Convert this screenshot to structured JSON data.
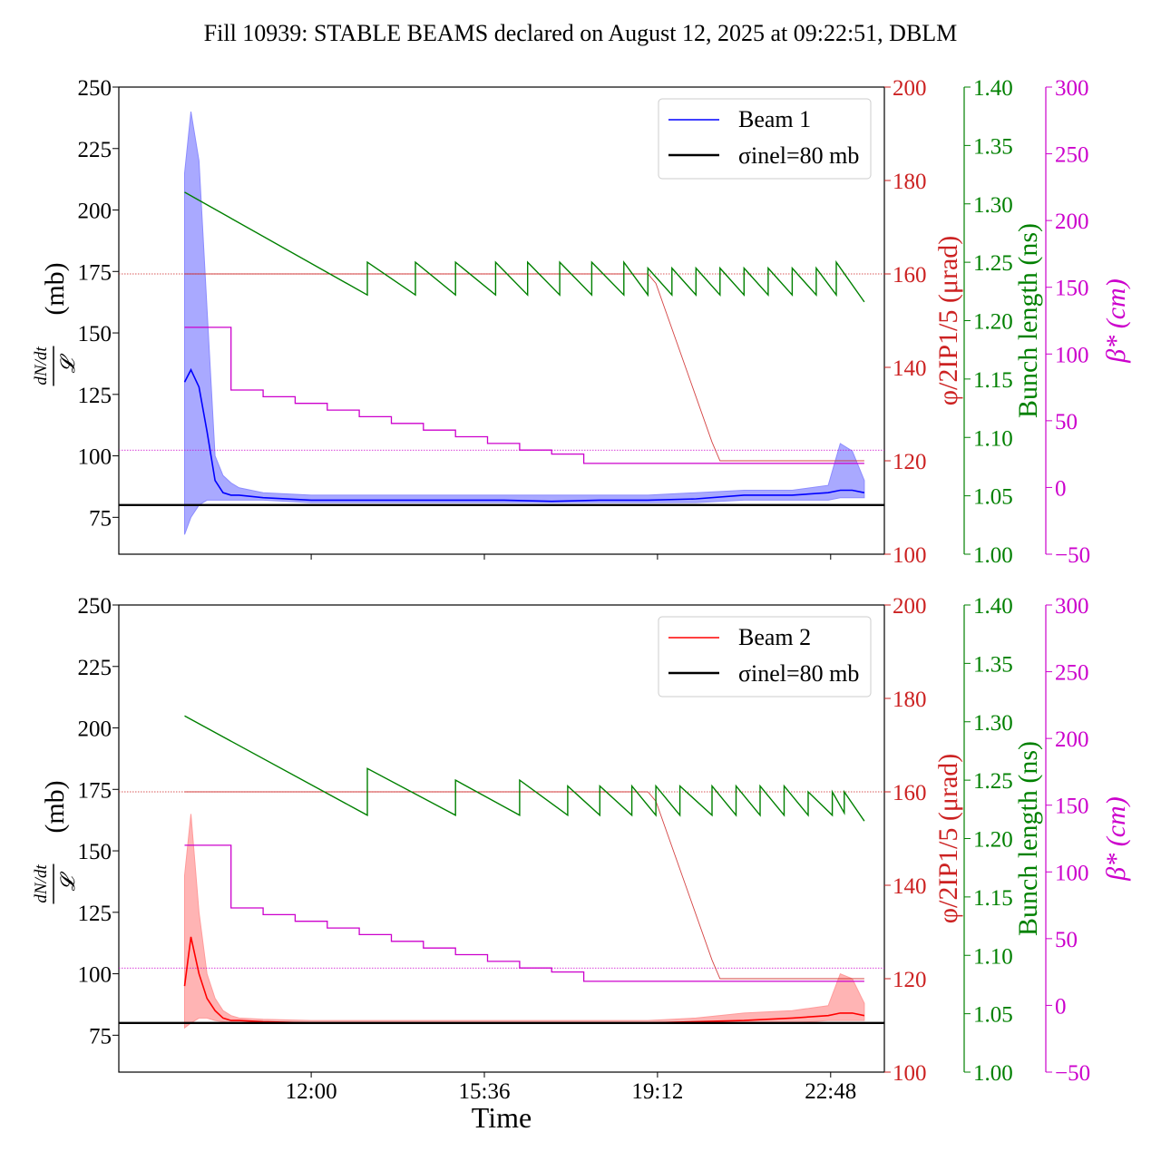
{
  "chart_data": {
    "title": "Fill 10939: STABLE BEAMS declared on August 12, 2025 at 09:22:51, DBLM",
    "type": "line",
    "xlabel": "Time",
    "x_ticks": [
      "12:00",
      "15:36",
      "19:12",
      "22:48"
    ],
    "x_range": [
      "08:00",
      "23:55"
    ],
    "colors": {
      "beam1": "#0000ff",
      "beam1_band": "#8c8cff",
      "beam2": "#ff0000",
      "beam2_band": "#ff9b9b",
      "sigma": "#000000",
      "crossing": "#cc2222",
      "bunch": "#008000",
      "beta": "#cc00cc"
    },
    "axes": {
      "left": {
        "label_frac": "dN/dt / 𝓛",
        "label_unit": "(mb)",
        "range": [
          60,
          250
        ],
        "ticks": [
          "75",
          "100",
          "125",
          "150",
          "175",
          "200",
          "225",
          "250"
        ]
      },
      "crossing": {
        "label": "φ/2IP1/5 (μrad)",
        "range": [
          100,
          200
        ],
        "ticks": [
          "100",
          "120",
          "140",
          "160",
          "180",
          "200"
        ]
      },
      "bunch": {
        "label": "Bunch length (ns)",
        "range": [
          1.0,
          1.4
        ],
        "ticks": [
          "1.00",
          "1.05",
          "1.10",
          "1.15",
          "1.20",
          "1.25",
          "1.30",
          "1.35",
          "1.40"
        ]
      },
      "beta": {
        "label": "β* (cm)",
        "range": [
          -50,
          300
        ],
        "ticks": [
          "−50",
          "0",
          "50",
          "100",
          "150",
          "200",
          "250",
          "300"
        ]
      }
    },
    "panels": [
      {
        "legend": [
          "Beam 1",
          "σinel=80 mb"
        ],
        "sigma_inel_mb": 80,
        "reference_lines": {
          "crossing_urad": 160,
          "beta_cm": 28
        },
        "xsec": {
          "name": "Beam 1",
          "x": [
            "09:22",
            "09:30",
            "09:40",
            "09:50",
            "10:00",
            "10:10",
            "10:20",
            "10:30",
            "11:00",
            "12:00",
            "13:00",
            "14:00",
            "15:00",
            "16:00",
            "17:00",
            "18:00",
            "19:00",
            "20:00",
            "21:00",
            "22:00",
            "22:45",
            "23:00",
            "23:15",
            "23:30"
          ],
          "y": [
            130,
            135,
            128,
            110,
            90,
            85,
            84,
            84,
            83,
            82,
            82,
            82,
            82,
            82,
            81.5,
            82,
            82,
            82.5,
            84,
            84,
            85,
            86,
            86,
            85
          ],
          "lo": [
            68,
            75,
            80,
            82,
            82,
            82,
            82,
            82,
            82,
            81,
            81,
            81,
            81,
            81,
            81,
            81,
            81,
            81,
            82,
            82,
            82,
            83,
            83,
            83
          ],
          "hi": [
            215,
            240,
            220,
            160,
            100,
            92,
            89,
            87,
            85,
            84,
            84,
            84,
            84,
            84,
            84,
            84,
            84,
            85,
            86,
            86,
            88,
            105,
            102,
            90
          ]
        },
        "bunch_length_ns": {
          "x": [
            "09:22",
            "13:10",
            "13:10",
            "14:10",
            "14:10",
            "15:00",
            "15:00",
            "15:50",
            "15:50",
            "16:30",
            "16:30",
            "17:10",
            "17:10",
            "17:50",
            "17:50",
            "18:30",
            "18:30",
            "19:00",
            "19:00",
            "19:30",
            "19:30",
            "20:00",
            "20:00",
            "20:30",
            "20:30",
            "21:00",
            "21:00",
            "21:30",
            "21:30",
            "22:00",
            "22:00",
            "22:30",
            "22:30",
            "22:55",
            "22:55",
            "23:30"
          ],
          "y": [
            1.31,
            1.222,
            1.25,
            1.222,
            1.25,
            1.222,
            1.25,
            1.222,
            1.25,
            1.222,
            1.25,
            1.222,
            1.25,
            1.222,
            1.25,
            1.222,
            1.25,
            1.222,
            1.245,
            1.222,
            1.245,
            1.222,
            1.245,
            1.222,
            1.245,
            1.222,
            1.245,
            1.222,
            1.245,
            1.222,
            1.245,
            1.222,
            1.245,
            1.222,
            1.25,
            1.216
          ]
        },
        "crossing_urad": {
          "x": [
            "09:22",
            "19:00",
            "19:10",
            "20:20",
            "20:30",
            "23:30"
          ],
          "y": [
            160,
            160,
            158,
            124,
            120,
            120
          ]
        },
        "beta_cm": {
          "x": [
            "09:22",
            "09:50",
            "10:20",
            "11:00",
            "11:40",
            "12:20",
            "13:00",
            "13:40",
            "14:20",
            "15:00",
            "15:40",
            "16:20",
            "17:00",
            "17:40",
            "23:30"
          ],
          "y": [
            120,
            120,
            73,
            68,
            63,
            58,
            53,
            48,
            43,
            38,
            33,
            28,
            25,
            18,
            18
          ]
        }
      },
      {
        "legend": [
          "Beam 2",
          "σinel=80 mb"
        ],
        "sigma_inel_mb": 80,
        "reference_lines": {
          "crossing_urad": 160,
          "beta_cm": 28
        },
        "xsec": {
          "name": "Beam 2",
          "x": [
            "09:22",
            "09:30",
            "09:40",
            "09:50",
            "10:00",
            "10:10",
            "10:20",
            "10:30",
            "11:00",
            "12:00",
            "13:00",
            "14:00",
            "15:00",
            "16:00",
            "17:00",
            "18:00",
            "19:00",
            "20:00",
            "21:00",
            "22:00",
            "22:45",
            "23:00",
            "23:15",
            "23:30"
          ],
          "y": [
            95,
            115,
            100,
            90,
            85,
            82,
            81,
            81,
            80.5,
            80,
            80,
            80,
            80,
            80,
            80,
            80,
            80,
            80.5,
            81,
            82,
            83,
            84,
            84,
            83
          ],
          "lo": [
            78,
            80,
            82,
            82,
            81,
            80.5,
            80,
            80,
            80,
            80,
            80,
            80,
            80,
            80,
            80,
            80,
            80,
            80,
            80,
            80,
            81,
            81,
            81,
            81
          ],
          "hi": [
            140,
            165,
            125,
            100,
            90,
            85,
            83,
            82,
            81.5,
            81,
            81,
            81,
            81,
            81,
            81,
            81,
            81,
            82,
            84,
            85,
            87,
            100,
            98,
            88
          ]
        },
        "bunch_length_ns": {
          "x": [
            "09:22",
            "13:10",
            "13:10",
            "15:00",
            "15:00",
            "16:20",
            "16:20",
            "17:20",
            "17:20",
            "18:00",
            "18:00",
            "18:40",
            "18:40",
            "19:10",
            "19:10",
            "19:40",
            "19:40",
            "20:20",
            "20:20",
            "20:50",
            "20:50",
            "21:20",
            "21:20",
            "21:50",
            "21:50",
            "22:20",
            "22:20",
            "22:50",
            "22:50",
            "23:05",
            "23:05",
            "23:30"
          ],
          "y": [
            1.305,
            1.22,
            1.26,
            1.22,
            1.25,
            1.22,
            1.25,
            1.22,
            1.245,
            1.22,
            1.245,
            1.22,
            1.245,
            1.22,
            1.245,
            1.22,
            1.245,
            1.22,
            1.245,
            1.22,
            1.245,
            1.22,
            1.245,
            1.22,
            1.245,
            1.22,
            1.24,
            1.22,
            1.24,
            1.222,
            1.24,
            1.215
          ]
        },
        "crossing_urad": {
          "x": [
            "09:22",
            "19:00",
            "19:10",
            "20:20",
            "20:30",
            "23:30"
          ],
          "y": [
            160,
            160,
            158,
            124,
            120,
            120
          ]
        },
        "beta_cm": {
          "x": [
            "09:22",
            "09:50",
            "10:20",
            "11:00",
            "11:40",
            "12:20",
            "13:00",
            "13:40",
            "14:20",
            "15:00",
            "15:40",
            "16:20",
            "17:00",
            "17:40",
            "23:30"
          ],
          "y": [
            120,
            120,
            73,
            68,
            63,
            58,
            53,
            48,
            43,
            38,
            33,
            28,
            25,
            18,
            18
          ]
        }
      }
    ]
  }
}
